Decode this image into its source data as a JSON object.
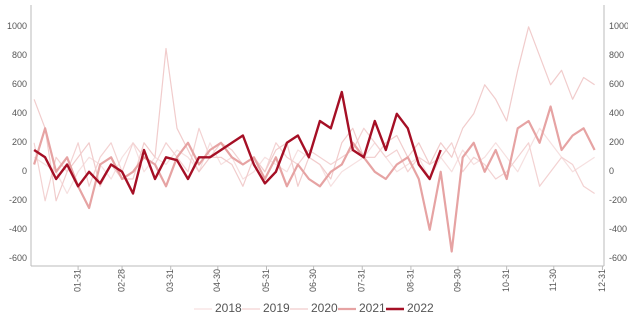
{
  "chart_data": {
    "type": "line",
    "x": [
      3,
      10,
      17,
      24,
      31,
      38,
      45,
      52,
      59,
      66,
      73,
      80,
      87,
      94,
      101,
      108,
      115,
      122,
      129,
      136,
      143,
      150,
      157,
      164,
      171,
      178,
      185,
      192,
      199,
      206,
      213,
      220,
      227,
      234,
      241,
      248,
      255,
      262,
      269,
      276,
      283,
      290,
      297,
      304,
      311,
      318,
      325,
      332,
      339,
      346,
      353,
      360
    ],
    "xlim": [
      1,
      366
    ],
    "xticks": [
      {
        "value": 31,
        "label": "01-31"
      },
      {
        "value": 59,
        "label": "02-28"
      },
      {
        "value": 90,
        "label": "03-31"
      },
      {
        "value": 120,
        "label": "04-30"
      },
      {
        "value": 151,
        "label": "05-31"
      },
      {
        "value": 181,
        "label": "06-30"
      },
      {
        "value": 212,
        "label": "07-31"
      },
      {
        "value": 243,
        "label": "08-31"
      },
      {
        "value": 273,
        "label": "09-30"
      },
      {
        "value": 304,
        "label": "10-31"
      },
      {
        "value": 334,
        "label": "11-30"
      },
      {
        "value": 365,
        "label": "12-31"
      }
    ],
    "ylim": [
      -650,
      1150
    ],
    "yticks": [
      -600,
      -400,
      -200,
      0,
      200,
      400,
      600,
      800,
      1000
    ],
    "y2lim": [
      -650,
      1150
    ],
    "y2ticks": [
      -600,
      -400,
      -200,
      0,
      200,
      400,
      600,
      800,
      1000
    ],
    "grid": false,
    "legend": "bottom",
    "series": [
      {
        "name": "2018",
        "color": "#f6e0e0",
        "width": 1.2,
        "values": [
          100,
          50,
          0,
          -150,
          0,
          100,
          50,
          -50,
          100,
          200,
          0,
          100,
          50,
          150,
          100,
          0,
          200,
          50,
          100,
          -50,
          0,
          100,
          50,
          0,
          150,
          100,
          50,
          -100,
          0,
          50,
          100,
          200,
          100,
          0,
          50,
          100,
          -50,
          100,
          0,
          150,
          50,
          100,
          200,
          100,
          0,
          150,
          300,
          200,
          100,
          0,
          50,
          100
        ]
      },
      {
        "name": "2019",
        "color": "#f3d2d2",
        "width": 1.2,
        "values": [
          200,
          -200,
          100,
          0,
          200,
          -100,
          100,
          200,
          0,
          200,
          100,
          50,
          200,
          100,
          0,
          300,
          100,
          200,
          150,
          50,
          100,
          0,
          200,
          100,
          50,
          150,
          100,
          50,
          100,
          150,
          300,
          200,
          100,
          150,
          0,
          100,
          50,
          100,
          200,
          0,
          100,
          50,
          -50,
          0,
          100,
          200,
          -100,
          0,
          100,
          50,
          -100,
          -150
        ]
      },
      {
        "name": "2020",
        "color": "#f1cccc",
        "width": 1.2,
        "values": [
          500,
          300,
          -200,
          0,
          100,
          200,
          -100,
          50,
          -50,
          -50,
          200,
          100,
          850,
          300,
          150,
          0,
          100,
          100,
          50,
          -100,
          100,
          0,
          150,
          200,
          -100,
          100,
          50,
          -50,
          200,
          300,
          100,
          100,
          200,
          250,
          100,
          200,
          50,
          200,
          100,
          300,
          400,
          600,
          500,
          350,
          700,
          1000,
          800,
          600,
          700,
          500,
          650,
          600
        ]
      },
      {
        "name": "2021",
        "color": "#e6a3a3",
        "width": 2.2,
        "values": [
          50,
          300,
          0,
          100,
          -100,
          -250,
          50,
          100,
          -50,
          0,
          100,
          50,
          -100,
          100,
          200,
          50,
          150,
          200,
          100,
          50,
          100,
          -50,
          100,
          -100,
          50,
          -50,
          -100,
          0,
          50,
          200,
          100,
          0,
          -50,
          50,
          100,
          -50,
          -400,
          0,
          -550,
          100,
          200,
          0,
          150,
          -50,
          300,
          350,
          200,
          450,
          150,
          250,
          300,
          150
        ]
      },
      {
        "name": "2022",
        "color": "#a50f25",
        "width": 2.4,
        "values": [
          150,
          100,
          -50,
          50,
          -100,
          0,
          -80,
          50,
          0,
          -150,
          150,
          -50,
          100,
          80,
          -50,
          100,
          100,
          150,
          200,
          250,
          50,
          -80,
          0,
          200,
          250,
          100,
          350,
          300,
          550,
          150,
          100,
          350,
          150,
          400,
          300,
          50,
          -50,
          150,
          null,
          null,
          null,
          null,
          null,
          null,
          null,
          null,
          null,
          null,
          null,
          null,
          null,
          null
        ]
      }
    ]
  }
}
